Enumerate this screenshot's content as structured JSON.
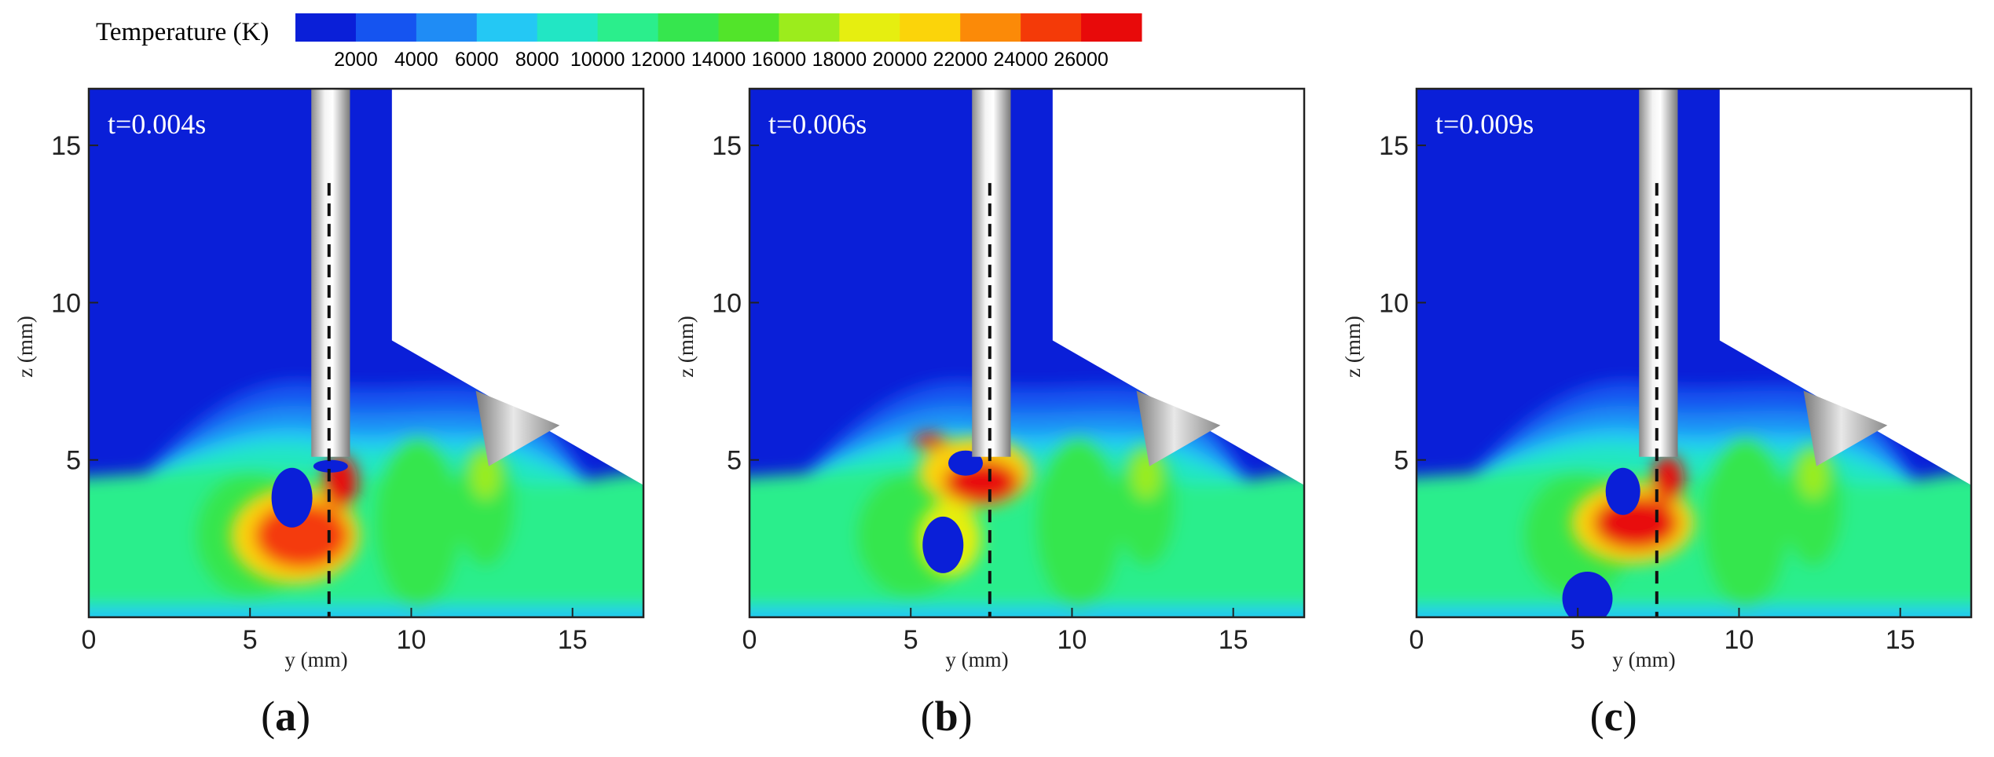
{
  "legend": {
    "title": "Temperature (K)",
    "ticks": [
      "2000",
      "4000",
      "6000",
      "8000",
      "10000",
      "12000",
      "14000",
      "16000",
      "18000",
      "20000",
      "22000",
      "24000",
      "26000"
    ],
    "colors": [
      "#0a1fd8",
      "#1554f0",
      "#1f8cf5",
      "#24c8f4",
      "#22e6c4",
      "#2bee8c",
      "#36e64e",
      "#52e42a",
      "#9cec1c",
      "#e6ee10",
      "#fbd40a",
      "#fb8a08",
      "#f43a08",
      "#e80a0a"
    ]
  },
  "panels": [
    {
      "caption_letter": "a",
      "time": "t=0.004s"
    },
    {
      "caption_letter": "b",
      "time": "t=0.006s"
    },
    {
      "caption_letter": "c",
      "time": "t=0.009s"
    }
  ],
  "axes": {
    "xlabel": "y (mm)",
    "ylabel": "z (mm)",
    "xticks": [
      "0",
      "5",
      "10",
      "15"
    ],
    "yticks": [
      "5",
      "10",
      "15"
    ]
  },
  "chart_data": {
    "type": "heatmap",
    "title": "",
    "quantity": "Temperature (K)",
    "xlabel": "y (mm)",
    "ylabel": "z (mm)",
    "xlim": [
      0,
      17.2
    ],
    "ylim": [
      0,
      16.8
    ],
    "color_levels": [
      2000,
      4000,
      6000,
      8000,
      10000,
      12000,
      14000,
      16000,
      18000,
      20000,
      22000,
      24000,
      26000
    ],
    "panels": [
      {
        "label": "(a)",
        "time": "t=0.004s"
      },
      {
        "label": "(b)",
        "time": "t=0.006s"
      },
      {
        "label": "(c)",
        "time": "t=0.009s"
      }
    ]
  }
}
